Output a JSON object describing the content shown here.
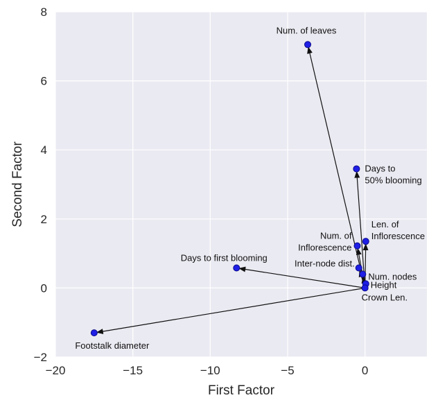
{
  "chart_data": {
    "type": "scatter",
    "title": "",
    "xlabel": "First Factor",
    "ylabel": "Second Factor",
    "xlim": [
      -20,
      4
    ],
    "ylim": [
      -2,
      8
    ],
    "xticks": [
      "−20",
      "−15",
      "−10",
      "−5",
      "0"
    ],
    "yticks": [
      "−2",
      "0",
      "2",
      "4",
      "6",
      "8"
    ],
    "xtick_values": [
      -20,
      -15,
      -10,
      -5,
      0
    ],
    "ytick_values": [
      -2,
      0,
      2,
      4,
      6,
      8
    ],
    "grid": true,
    "background": "#eaeaf2",
    "point_color": "#1f1fe6",
    "arrow_origin": [
      0,
      0
    ],
    "points": [
      {
        "label": "Num. of leaves",
        "x": -3.7,
        "y": 7.05,
        "label_lines": [
          "Num. of leaves"
        ]
      },
      {
        "label": "Days to 50% blooming",
        "x": -0.55,
        "y": 3.45,
        "label_lines": [
          "Days to",
          "50% blooming"
        ]
      },
      {
        "label": "Len. of Inflorescence",
        "x": 0.05,
        "y": 1.35,
        "label_lines": [
          "Len. of",
          "Inflorescence"
        ]
      },
      {
        "label": "Num. of Inflorescence",
        "x": -0.5,
        "y": 1.22,
        "label_lines": [
          "Num. of",
          "Inflorescence"
        ]
      },
      {
        "label": "Inter-node dist.",
        "x": -0.4,
        "y": 0.58,
        "label_lines": [
          "Inter-node dist."
        ]
      },
      {
        "label": "Num. nodes",
        "x": -0.15,
        "y": 0.4,
        "label_lines": [
          "Num. nodes"
        ]
      },
      {
        "label": "Height",
        "x": 0.05,
        "y": 0.12,
        "label_lines": [
          "Height"
        ]
      },
      {
        "label": "Crown Len.",
        "x": 0.0,
        "y": 0.0,
        "label_lines": [
          "Crown Len."
        ]
      },
      {
        "label": "Days to first blooming",
        "x": -8.3,
        "y": 0.58,
        "label_lines": [
          "Days to first blooming"
        ]
      },
      {
        "label": "Footstalk diameter",
        "x": -17.5,
        "y": -1.3,
        "label_lines": [
          "Footstalk diameter"
        ]
      }
    ]
  }
}
